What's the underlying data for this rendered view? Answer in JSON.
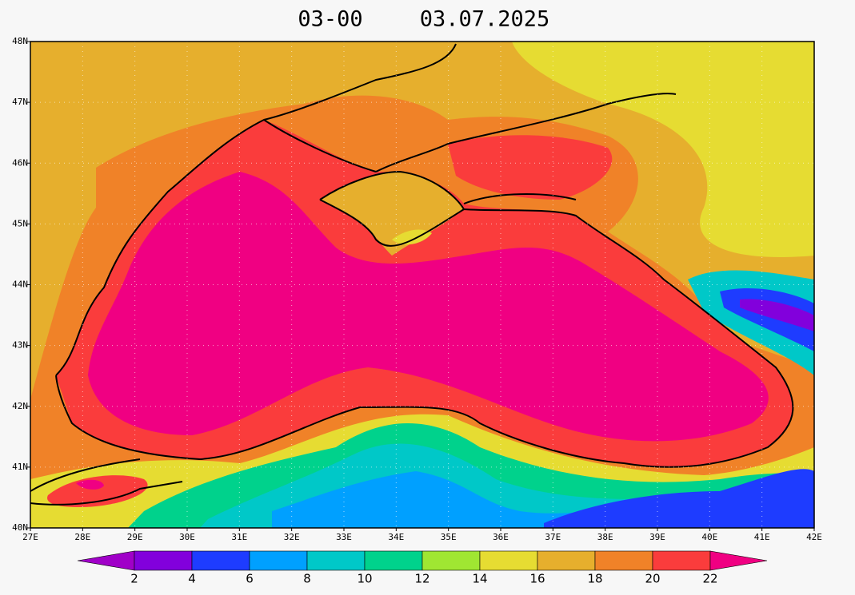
{
  "title": {
    "time": "03-00",
    "date": "03.07.2025"
  },
  "lat_labels": [
    "48N",
    "47N",
    "46N",
    "45N",
    "44N",
    "43N",
    "42N",
    "41N",
    "40N"
  ],
  "lon_labels": [
    "27E",
    "28E",
    "29E",
    "30E",
    "31E",
    "32E",
    "33E",
    "34E",
    "35E",
    "36E",
    "37E",
    "38E",
    "39E",
    "40E",
    "41E",
    "42E"
  ],
  "colorbar": {
    "labels": [
      "2",
      "4",
      "6",
      "8",
      "10",
      "12",
      "14",
      "16",
      "18",
      "20",
      "22"
    ],
    "colors": [
      "#a000c8",
      "#8200dc",
      "#1e3cff",
      "#00a0ff",
      "#00c8c8",
      "#00d28c",
      "#a0e632",
      "#e6dc32",
      "#e6af2d",
      "#f08228",
      "#fa3c3c",
      "#f00082"
    ]
  }
}
